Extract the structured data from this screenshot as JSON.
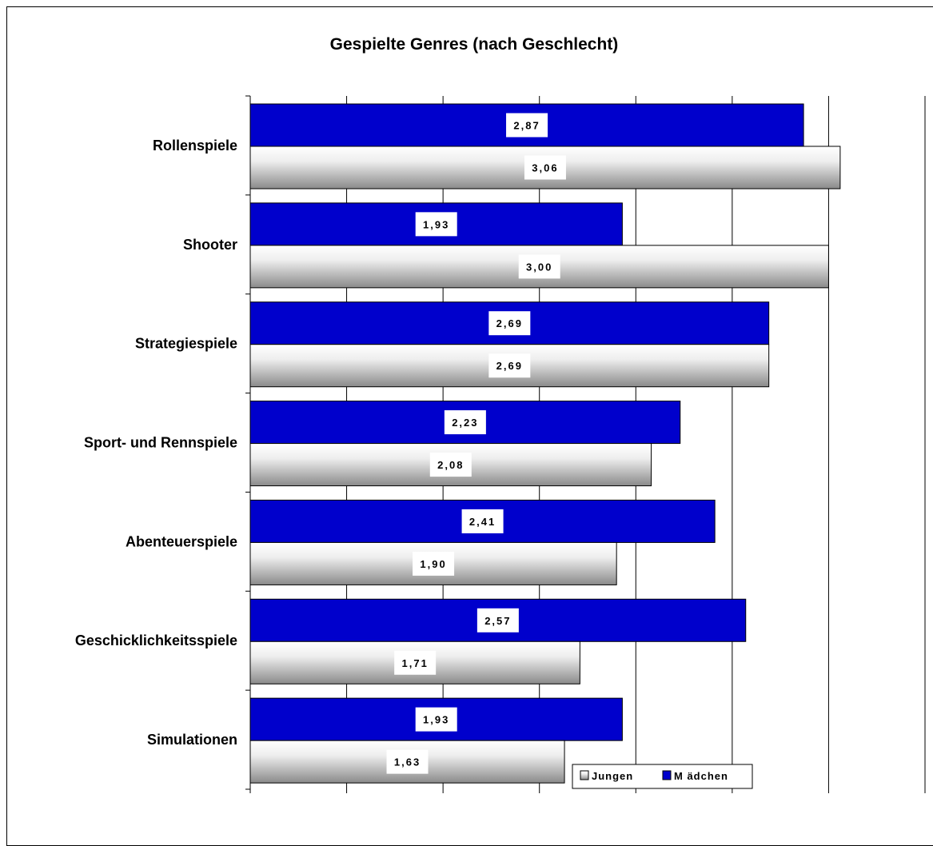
{
  "chart_data": {
    "type": "bar",
    "orientation": "horizontal",
    "title": "Gespielte Genres (nach Geschlecht)",
    "xlabel": "",
    "ylabel": "",
    "xlim": [
      0,
      3.5
    ],
    "grid": true,
    "legend_position": "bottom",
    "categories": [
      "Rollenspiele",
      "Shooter",
      "Strategiespiele",
      "Sport- und Rennspiele",
      "Abenteuerspiele",
      "Geschicklichkeitsspiele",
      "Simulationen"
    ],
    "series": [
      {
        "name": "M ädchen",
        "color": "#0000cc",
        "values": [
          2.87,
          1.93,
          2.69,
          2.23,
          2.41,
          2.57,
          1.93
        ],
        "labels": [
          "2,87",
          "1,93",
          "2,69",
          "2,23",
          "2,41",
          "2,57",
          "1,93"
        ]
      },
      {
        "name": "Jungen",
        "color": "#c0c0c0",
        "values": [
          3.06,
          3.0,
          2.69,
          2.08,
          1.9,
          1.71,
          1.63
        ],
        "labels": [
          "3,06",
          "3,00",
          "2,69",
          "2,08",
          "1,90",
          "1,71",
          "1,63"
        ]
      }
    ],
    "legend": [
      "Jungen",
      "M ädchen"
    ]
  }
}
